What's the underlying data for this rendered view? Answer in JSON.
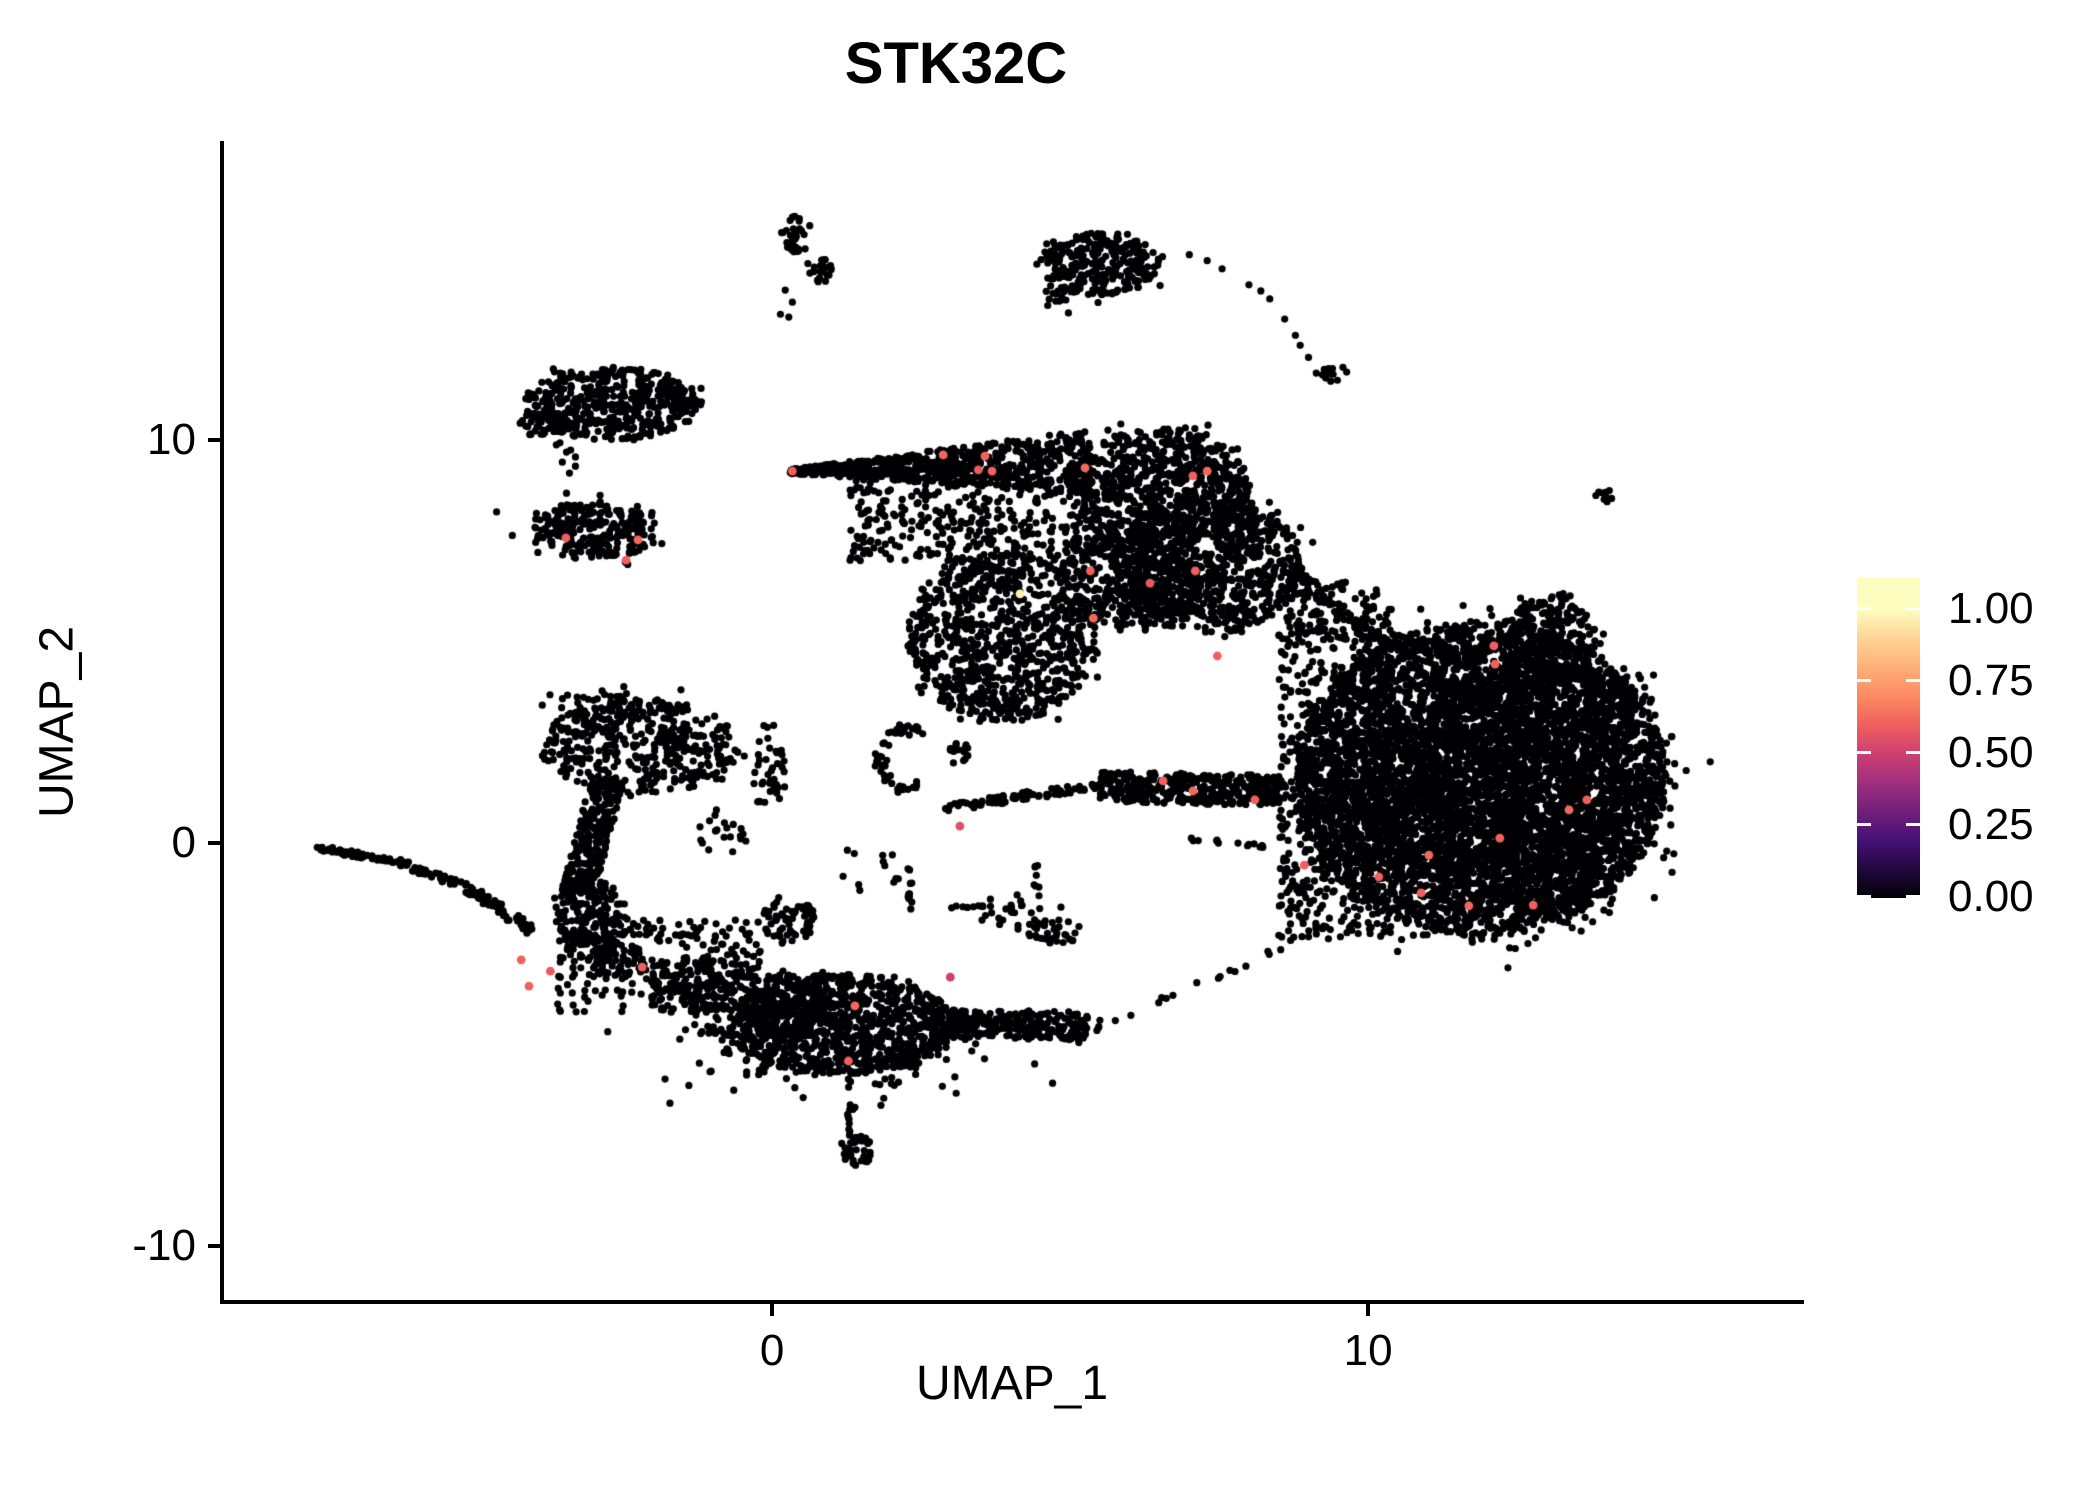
{
  "title": "STK32C",
  "axes": {
    "x": {
      "label": "UMAP_1",
      "ticks": [
        {
          "value": 0,
          "label": "0"
        },
        {
          "value": 10,
          "label": "10"
        }
      ]
    },
    "y": {
      "label": "UMAP_2",
      "ticks": [
        {
          "value": 10,
          "label": "10"
        },
        {
          "value": 0,
          "label": "0"
        },
        {
          "value": -10,
          "label": "-10"
        }
      ]
    }
  },
  "legend": {
    "tick_labels": [
      {
        "value": 1.0,
        "label": "1.00"
      },
      {
        "value": 0.75,
        "label": "0.75"
      },
      {
        "value": 0.5,
        "label": "0.50"
      },
      {
        "value": 0.25,
        "label": "0.25"
      },
      {
        "value": 0.0,
        "label": "0.00"
      }
    ]
  },
  "colors": {
    "background": "#ffffff",
    "axis": "#000000",
    "text": "#000000",
    "zero_expression_point": "#000004",
    "colormap": "magma",
    "colormap_stops": [
      {
        "t": 0.0,
        "c": "#000004"
      },
      {
        "t": 0.2,
        "c": "#451077"
      },
      {
        "t": 0.4,
        "c": "#9f2f7f"
      },
      {
        "t": 0.5,
        "c": "#cd4071"
      },
      {
        "t": 0.6,
        "c": "#f1605d"
      },
      {
        "t": 0.7,
        "c": "#fc8961"
      },
      {
        "t": 0.8,
        "c": "#feb078"
      },
      {
        "t": 0.9,
        "c": "#fed395"
      },
      {
        "t": 1.0,
        "c": "#fcfdbf"
      }
    ]
  },
  "chart_data": {
    "type": "scatter",
    "title": "STK32C",
    "xlabel": "UMAP_1",
    "ylabel": "UMAP_2",
    "xlim": [
      -9.23,
      17.28
    ],
    "ylim": [
      -11.39,
      17.37
    ],
    "legend_range": [
      0,
      1
    ],
    "grid": false,
    "legend_position": "right",
    "point_radius_px": 3.6,
    "highlight_radius_px": 4.4,
    "clusters": [
      {
        "name": "upper-left-main",
        "type": "blob",
        "x": -2.7,
        "y": 10.92,
        "rx": 1.45,
        "ry": 0.92,
        "n": 430
      },
      {
        "name": "upper-left-lobe",
        "type": "blob",
        "x": -3.85,
        "y": 10.4,
        "rx": 0.38,
        "ry": 0.33,
        "n": 45
      },
      {
        "name": "upper-left-tail",
        "type": "band",
        "x1": -1.9,
        "y1": 10.85,
        "x2": -1.15,
        "y2": 10.92,
        "w1": 0.06,
        "w2": 0.06,
        "n": 9
      },
      {
        "name": "upper-left-drips",
        "type": "dots",
        "pts": [
          [
            -3.62,
            9.88
          ],
          [
            -3.45,
            9.7
          ],
          [
            -3.3,
            9.58
          ],
          [
            -3.52,
            9.45
          ],
          [
            -3.38,
            9.75
          ],
          [
            -3.56,
            9.93
          ],
          [
            -3.4,
            9.18
          ],
          [
            -3.45,
            8.68
          ],
          [
            -3.44,
            8.39
          ],
          [
            -3.3,
            9.35
          ]
        ]
      },
      {
        "name": "upper-left-band",
        "type": "blob",
        "x": -2.95,
        "y": 7.75,
        "rx": 1.05,
        "ry": 0.72,
        "n": 210
      },
      {
        "name": "upper-left-band-fringe",
        "type": "gauss",
        "x": -2.95,
        "y": 7.75,
        "rx": 0.55,
        "ry": 0.38,
        "n": 50
      },
      {
        "name": "top-small-a",
        "type": "blob",
        "x": 0.39,
        "y": 15.1,
        "rx": 0.26,
        "ry": 0.48,
        "n": 32
      },
      {
        "name": "top-small-b",
        "type": "blob",
        "x": 0.78,
        "y": 14.22,
        "rx": 0.22,
        "ry": 0.35,
        "n": 22
      },
      {
        "name": "top-small-drips",
        "type": "dots",
        "pts": [
          [
            0.22,
            13.72
          ],
          [
            0.34,
            13.42
          ],
          [
            0.14,
            13.12
          ],
          [
            0.28,
            13.05
          ]
        ]
      },
      {
        "name": "top-right-main",
        "type": "blob",
        "x": 5.5,
        "y": 14.37,
        "rx": 1.0,
        "ry": 0.77,
        "n": 270
      },
      {
        "name": "top-right-tip",
        "type": "gauss",
        "x": 4.85,
        "y": 13.62,
        "rx": 0.22,
        "ry": 0.22,
        "n": 22
      },
      {
        "name": "top-right-chain",
        "type": "dots",
        "pts": [
          [
            6.55,
            14.55
          ],
          [
            7.0,
            14.6
          ],
          [
            7.3,
            14.45
          ],
          [
            7.55,
            14.25
          ],
          [
            8.0,
            13.85
          ],
          [
            8.2,
            13.7
          ],
          [
            8.35,
            13.5
          ],
          [
            8.6,
            13.0
          ],
          [
            8.78,
            12.6
          ],
          [
            8.86,
            12.35
          ],
          [
            9.13,
            11.66
          ],
          [
            9.0,
            12.05
          ]
        ]
      },
      {
        "name": "top-right-chain-blob",
        "type": "blob",
        "x": 9.45,
        "y": 11.65,
        "rx": 0.23,
        "ry": 0.21,
        "n": 14
      },
      {
        "name": "far-right-dot",
        "type": "blob",
        "x": 13.99,
        "y": 8.61,
        "rx": 0.17,
        "ry": 0.15,
        "n": 9
      },
      {
        "name": "central-wedge",
        "type": "band",
        "x1": 0.3,
        "y1": 9.22,
        "x2": 5.35,
        "y2": 9.45,
        "w1": 0.05,
        "w2": 0.8,
        "n": 700
      },
      {
        "name": "central-a",
        "type": "blob",
        "x": 6.5,
        "y": 8.8,
        "rx": 1.5,
        "ry": 1.5,
        "n": 700
      },
      {
        "name": "central-b",
        "type": "blob",
        "x": 7.3,
        "y": 6.9,
        "rx": 1.6,
        "ry": 1.7,
        "n": 800
      },
      {
        "name": "central-c",
        "type": "blob",
        "x": 6.0,
        "y": 6.5,
        "rx": 1.2,
        "ry": 1.2,
        "n": 350
      },
      {
        "name": "central-lobe",
        "type": "blob",
        "x": 3.85,
        "y": 5.1,
        "rx": 1.6,
        "ry": 2.1,
        "n": 850
      },
      {
        "name": "central-scatter",
        "type": "rect",
        "x0": 1.3,
        "y0": 7.0,
        "x1": 5.3,
        "y1": 9.3,
        "n": 360
      },
      {
        "name": "c-arc",
        "type": "arc",
        "x": 2.25,
        "y": 2.1,
        "rx": 0.5,
        "ry": 0.72,
        "a1": 60,
        "a2": 300,
        "w": 0.07,
        "n": 48
      },
      {
        "name": "arc-blob",
        "type": "blob",
        "x": 3.12,
        "y": 2.23,
        "rx": 0.2,
        "ry": 0.3,
        "n": 18
      },
      {
        "name": "rise-chain",
        "type": "band",
        "x1": 2.82,
        "y1": 0.85,
        "x2": 5.5,
        "y2": 1.45,
        "w1": 0.1,
        "w2": 0.1,
        "n": 80
      },
      {
        "name": "mid-band",
        "type": "band",
        "x1": 5.5,
        "y1": 1.4,
        "x2": 8.55,
        "y2": 1.3,
        "w1": 0.38,
        "w2": 0.38,
        "n": 380
      },
      {
        "name": "low-chain",
        "type": "band",
        "x1": 7.0,
        "y1": 0.08,
        "x2": 8.4,
        "y2": -0.08,
        "w1": 0.05,
        "w2": 0.05,
        "n": 14
      },
      {
        "name": "v-chain",
        "type": "band",
        "x1": 2.32,
        "y1": -0.55,
        "x2": 2.32,
        "y2": -1.75,
        "w1": 0.05,
        "w2": 0.05,
        "n": 11
      },
      {
        "name": "h-chain",
        "type": "band",
        "x1": 2.94,
        "y1": -1.59,
        "x2": 3.61,
        "y2": -1.59,
        "w1": 0.04,
        "w2": 0.04,
        "n": 9
      },
      {
        "name": "cross-clump",
        "type": "gauss",
        "x": 4.1,
        "y": -1.7,
        "rx": 0.3,
        "ry": 0.28,
        "n": 26
      },
      {
        "name": "v-bar",
        "type": "band",
        "x1": 4.43,
        "y1": -0.55,
        "x2": 4.43,
        "y2": -1.35,
        "w1": 0.05,
        "w2": 0.05,
        "n": 8
      },
      {
        "name": "clump-d",
        "type": "blob",
        "x": 4.75,
        "y": -2.2,
        "rx": 0.45,
        "ry": 0.3,
        "n": 34
      },
      {
        "name": "sparse-mid",
        "type": "rect",
        "x0": 0.8,
        "y0": -1.2,
        "x1": 2.15,
        "y1": -0.15,
        "n": 12
      },
      {
        "name": "left-mid-clump",
        "type": "gauss",
        "x": -0.85,
        "y": 0.3,
        "rx": 0.38,
        "ry": 0.27,
        "n": 14
      },
      {
        "name": "mid-left-dots",
        "type": "dots",
        "pts": [
          [
            -1.21,
            0.4
          ],
          [
            -0.95,
            0.3
          ],
          [
            -0.7,
            0.15
          ],
          [
            -0.44,
            0.05
          ],
          [
            -1.05,
            0.55
          ],
          [
            -0.8,
            0.5
          ]
        ]
      },
      {
        "name": "right-core",
        "type": "blob",
        "x": 11.9,
        "y": 1.6,
        "rx": 3.1,
        "ry": 3.9,
        "n": 5000
      },
      {
        "name": "right-core-2",
        "type": "blob",
        "x": 12.3,
        "y": 1.4,
        "rx": 2.2,
        "ry": 2.8,
        "n": 1100
      },
      {
        "name": "right-bump",
        "type": "blob",
        "x": 13.05,
        "y": 5.05,
        "rx": 0.78,
        "ry": 1.1,
        "n": 260
      },
      {
        "name": "right-left-scatter",
        "type": "rect",
        "x0": 8.5,
        "y0": -2.4,
        "x1": 10.4,
        "y1": 6.5,
        "n": 620
      },
      {
        "name": "arc-edge-1",
        "type": "band",
        "x1": 8.53,
        "y1": 7.02,
        "x2": 10.15,
        "y2": 4.96,
        "w1": 0.14,
        "w2": 0.14,
        "n": 60
      },
      {
        "name": "arc-edge-2",
        "type": "band",
        "x1": 10.15,
        "y1": 4.96,
        "x2": 11.83,
        "y2": 4.62,
        "w1": 0.12,
        "w2": 0.12,
        "n": 50
      },
      {
        "name": "right-tail",
        "type": "band",
        "x1": 9.7,
        "y1": -1.8,
        "x2": 5.4,
        "y2": -4.7,
        "w1": 0.09,
        "w2": 0.09,
        "n": 22
      },
      {
        "name": "cshape-top",
        "type": "blob",
        "x": -2.2,
        "y": 2.4,
        "rx": 1.65,
        "ry": 1.18,
        "n": 400
      },
      {
        "name": "cshape-top-2",
        "type": "gauss",
        "x": -2.9,
        "y": 3.3,
        "rx": 0.5,
        "ry": 0.35,
        "n": 60
      },
      {
        "name": "stem",
        "type": "band",
        "x1": -2.75,
        "y1": 1.6,
        "x2": -3.27,
        "y2": -1.3,
        "w1": 0.28,
        "w2": 0.28,
        "n": 260
      },
      {
        "name": "junction",
        "type": "blob",
        "x": -3.05,
        "y": -1.9,
        "rx": 0.62,
        "ry": 1.0,
        "n": 170
      },
      {
        "name": "left-tail-1",
        "type": "band",
        "x1": -7.65,
        "y1": -0.12,
        "x2": -6.3,
        "y2": -0.45,
        "w1": 0.07,
        "w2": 0.07,
        "n": 45
      },
      {
        "name": "left-tail-2",
        "type": "band",
        "x1": -6.3,
        "y1": -0.45,
        "x2": -5.1,
        "y2": -1.12,
        "w1": 0.09,
        "w2": 0.09,
        "n": 45
      },
      {
        "name": "left-tail-3",
        "type": "band",
        "x1": -5.1,
        "y1": -1.12,
        "x2": -4.0,
        "y2": -2.2,
        "w1": 0.11,
        "w2": 0.11,
        "n": 55
      },
      {
        "name": "junction-spread",
        "type": "rect",
        "x0": -3.6,
        "y0": -4.2,
        "x1": -0.2,
        "y1": -1.9,
        "n": 270
      },
      {
        "name": "spread-clump-1",
        "type": "blob",
        "x": -2.6,
        "y": -2.9,
        "rx": 0.5,
        "ry": 0.4,
        "n": 50
      },
      {
        "name": "spread-clump-2",
        "type": "blob",
        "x": -1.5,
        "y": -3.3,
        "rx": 0.6,
        "ry": 0.5,
        "n": 60
      },
      {
        "name": "lump-right",
        "type": "blob",
        "x": 0.27,
        "y": -1.9,
        "rx": 0.44,
        "ry": 0.6,
        "n": 70
      },
      {
        "name": "g1-right-fringe",
        "type": "rect",
        "x0": -0.37,
        "y0": 0.99,
        "x1": 0.22,
        "y1": 2.98,
        "n": 40
      },
      {
        "name": "bottom-core",
        "type": "blob",
        "x": 1.15,
        "y": -4.5,
        "rx": 1.9,
        "ry": 1.25,
        "n": 950
      },
      {
        "name": "bottom-left-ext",
        "type": "blob",
        "x": -0.3,
        "y": -4.0,
        "rx": 1.2,
        "ry": 0.9,
        "n": 260
      },
      {
        "name": "bottom-right-band",
        "type": "band",
        "x1": 2.7,
        "y1": -4.45,
        "x2": 5.3,
        "y2": -4.55,
        "w1": 0.35,
        "w2": 0.35,
        "n": 260
      },
      {
        "name": "bottom-fringe",
        "type": "gauss",
        "x": 1.0,
        "y": -5.35,
        "rx": 1.5,
        "ry": 0.5,
        "n": 120
      },
      {
        "name": "bottom-trail-dots",
        "type": "dots",
        "pts": [
          [
            5.45,
            -4.65
          ],
          [
            5.5,
            -4.4
          ]
        ]
      },
      {
        "name": "bottom-small-chain",
        "type": "band",
        "x1": 1.31,
        "y1": -6.6,
        "x2": 1.33,
        "y2": -7.25,
        "w1": 0.05,
        "w2": 0.05,
        "n": 8
      },
      {
        "name": "bottom-small",
        "type": "blob",
        "x": 1.42,
        "y": -7.6,
        "rx": 0.28,
        "ry": 0.4,
        "n": 40
      },
      {
        "name": "bottom-small-top-dot",
        "type": "dots",
        "pts": [
          [
            1.31,
            -6.5
          ]
        ]
      }
    ],
    "highlighted_cells": [
      [
        -3.46,
        7.57,
        0.6
      ],
      [
        -2.25,
        7.52,
        0.62
      ],
      [
        -2.45,
        7.02,
        0.6
      ],
      [
        0.34,
        9.23,
        0.6
      ],
      [
        2.87,
        9.63,
        0.62
      ],
      [
        3.57,
        9.6,
        0.6
      ],
      [
        3.46,
        9.26,
        0.58
      ],
      [
        3.69,
        9.23,
        0.6
      ],
      [
        5.25,
        9.31,
        0.62
      ],
      [
        7.06,
        9.11,
        0.6
      ],
      [
        7.3,
        9.23,
        0.62
      ],
      [
        5.34,
        6.75,
        0.6
      ],
      [
        7.1,
        6.75,
        0.6
      ],
      [
        6.34,
        6.45,
        0.58
      ],
      [
        7.47,
        4.64,
        0.6
      ],
      [
        5.39,
        5.58,
        0.62
      ],
      [
        4.16,
        6.18,
        0.97
      ],
      [
        6.56,
        1.54,
        0.6
      ],
      [
        7.06,
        1.29,
        0.62
      ],
      [
        8.1,
        1.07,
        0.6
      ],
      [
        3.15,
        0.42,
        0.55
      ],
      [
        12.11,
        4.89,
        0.6
      ],
      [
        12.13,
        4.44,
        0.6
      ],
      [
        13.37,
        0.82,
        0.62
      ],
      [
        13.67,
        1.07,
        0.6
      ],
      [
        12.21,
        0.12,
        0.6
      ],
      [
        11.02,
        -0.3,
        0.62
      ],
      [
        8.93,
        -0.55,
        0.6
      ],
      [
        10.18,
        -0.84,
        0.6
      ],
      [
        10.89,
        -1.24,
        0.6
      ],
      [
        11.69,
        -1.56,
        0.62
      ],
      [
        12.77,
        -1.54,
        0.6
      ],
      [
        -4.21,
        -2.9,
        0.6
      ],
      [
        -3.72,
        -3.18,
        0.58
      ],
      [
        -4.08,
        -3.55,
        0.6
      ],
      [
        -2.18,
        -3.08,
        0.6
      ],
      [
        1.39,
        -4.04,
        0.62
      ],
      [
        1.28,
        -5.41,
        0.6
      ],
      [
        2.99,
        -3.33,
        0.5
      ]
    ]
  }
}
